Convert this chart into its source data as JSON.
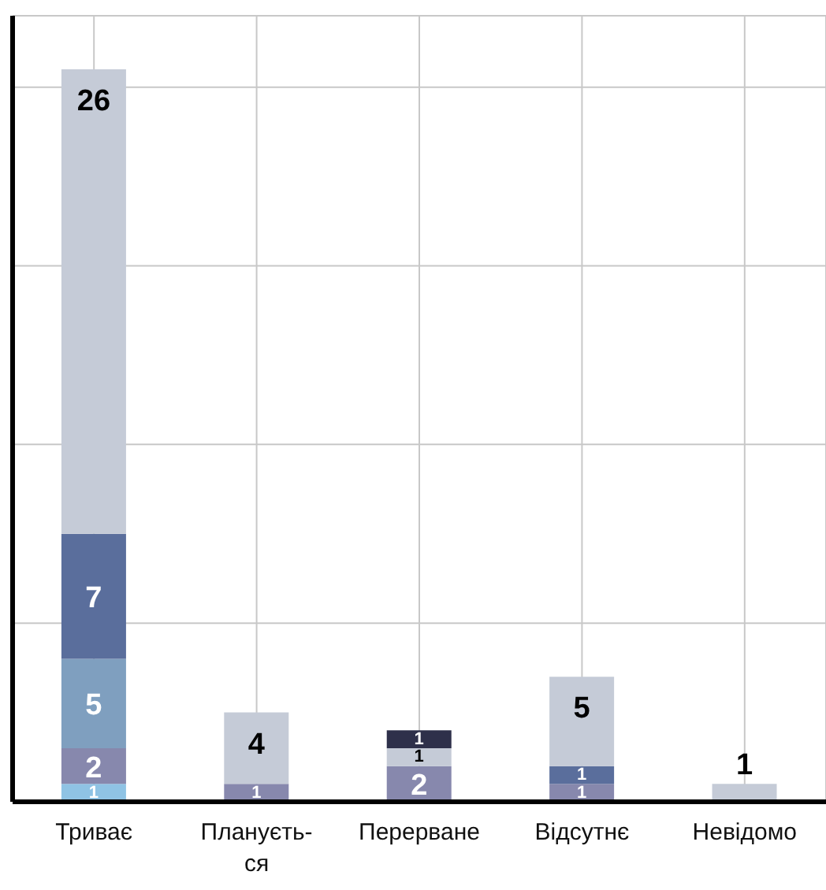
{
  "chart_data": {
    "type": "bar",
    "stacked": true,
    "categories": [
      "Триває",
      "Плануєть-ся",
      "Перерване",
      "Відсутнє",
      "Невідомо"
    ],
    "series": [
      {
        "color": "#8fc3e4",
        "values": [
          1,
          null,
          null,
          null,
          null
        ]
      },
      {
        "color": "#8788ad",
        "values": [
          2,
          1,
          2,
          1,
          null
        ]
      },
      {
        "color": "#7f9fbf",
        "values": [
          5,
          null,
          null,
          null,
          null
        ]
      },
      {
        "color": "#5a6e9c",
        "values": [
          7,
          null,
          null,
          1,
          null
        ]
      },
      {
        "color": "#c5cbd7",
        "values": [
          26,
          4,
          1,
          5,
          1
        ]
      },
      {
        "color": "#2e304a",
        "values": [
          null,
          null,
          1,
          null,
          null
        ]
      }
    ],
    "ylim": [
      0,
      44
    ],
    "yticks": [
      {
        "value": 10,
        "label": null
      },
      {
        "value": 20,
        "label": null
      },
      {
        "value": 30,
        "label": null
      },
      {
        "value": 40,
        "label": null
      }
    ],
    "tick_labels": "x",
    "grid": true,
    "data_labels": true
  }
}
